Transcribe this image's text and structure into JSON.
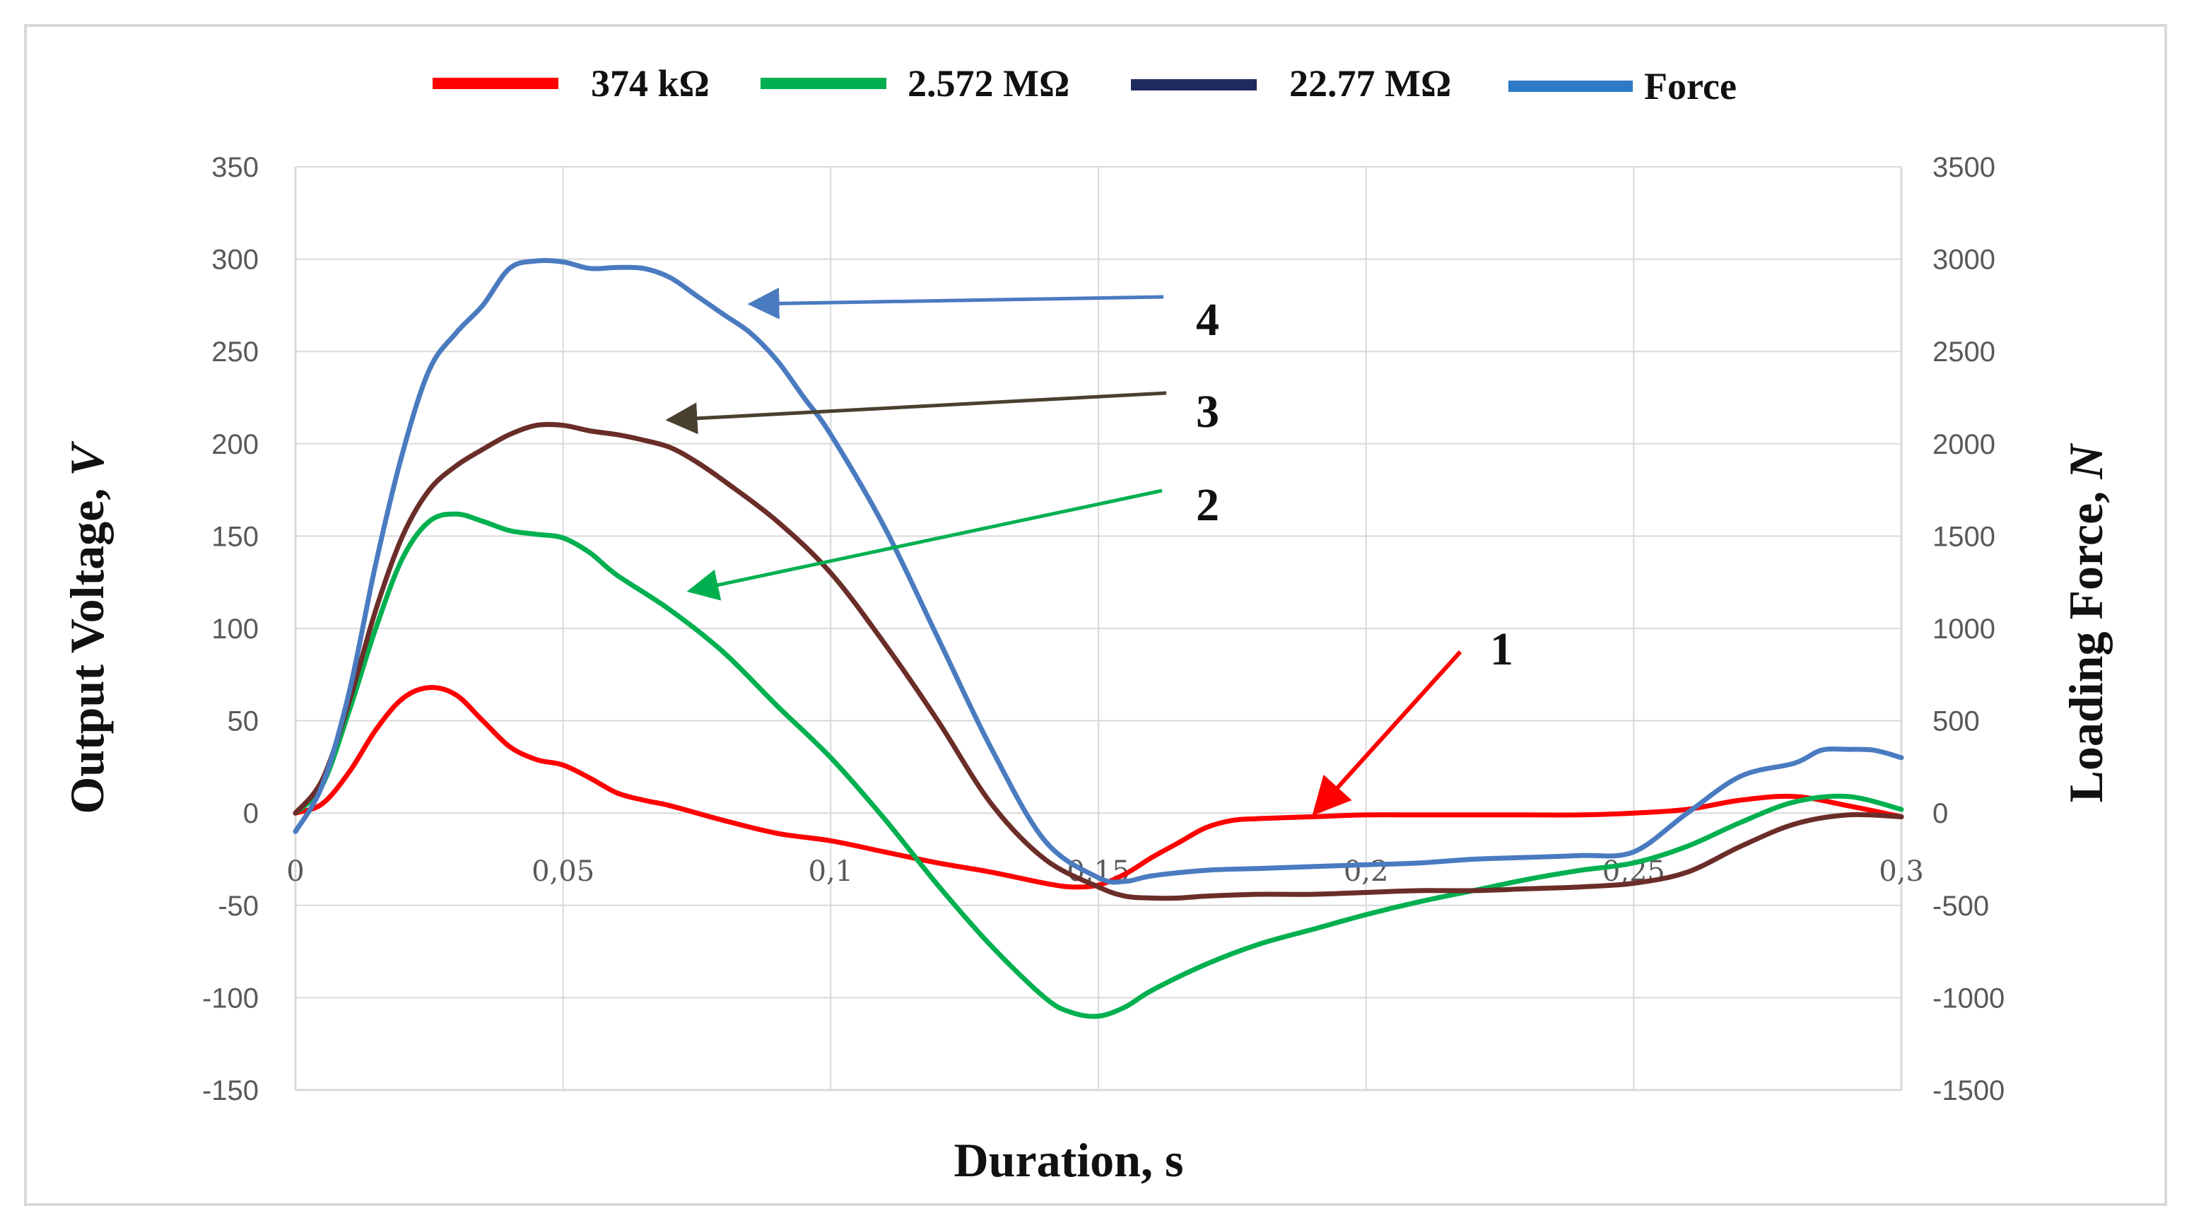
{
  "chart_data": {
    "type": "line",
    "xlabel": "Duration, s",
    "ylabel_left": "Output Voltage, V",
    "ylabel_left_italic_unit": "V",
    "ylabel_right": "Loading Force, N",
    "ylabel_right_italic_unit": "N",
    "xlim": [
      0,
      0.3
    ],
    "ylim_left": [
      -150,
      350
    ],
    "ylim_right": [
      -1500,
      3500
    ],
    "x_ticks": [
      0,
      0.05,
      0.1,
      0.15,
      0.2,
      0.25,
      0.3
    ],
    "x_tick_labels": [
      "0",
      "0,05",
      "0,1",
      "0,15",
      "0,2",
      "0,25",
      "0,3"
    ],
    "y_left_ticks": [
      -150,
      -100,
      -50,
      0,
      50,
      100,
      150,
      200,
      250,
      300,
      350
    ],
    "y_left_tick_labels": [
      "-150",
      "-100",
      "-50",
      "0",
      "50",
      "100",
      "150",
      "200",
      "250",
      "300",
      "350"
    ],
    "y_right_ticks": [
      -1500,
      -1000,
      -500,
      0,
      500,
      1000,
      1500,
      2000,
      2500,
      3000,
      3500
    ],
    "y_right_tick_labels": [
      "-1500",
      "-1000",
      "-500",
      "0",
      "500",
      "1000",
      "1500",
      "2000",
      "2500",
      "3000",
      "3500"
    ],
    "grid": "vertical-and-horizontal",
    "legend_position": "top",
    "legend": [
      {
        "label": "374 kΩ",
        "color": "#ff0000"
      },
      {
        "label": "2.572 MΩ",
        "color": "#00b050"
      },
      {
        "label": "22.77 MΩ",
        "color": "#1f2a5e"
      },
      {
        "label": "Force",
        "color": "#2f7ac6"
      }
    ],
    "series": [
      {
        "name": "374 kΩ",
        "axis": "left",
        "color": "#ff0000",
        "x": [
          0,
          0.005,
          0.01,
          0.015,
          0.02,
          0.025,
          0.03,
          0.035,
          0.04,
          0.045,
          0.05,
          0.055,
          0.06,
          0.065,
          0.07,
          0.08,
          0.09,
          0.1,
          0.11,
          0.12,
          0.13,
          0.14,
          0.145,
          0.15,
          0.155,
          0.16,
          0.165,
          0.17,
          0.175,
          0.18,
          0.19,
          0.2,
          0.21,
          0.22,
          0.23,
          0.24,
          0.25,
          0.26,
          0.27,
          0.28,
          0.29,
          0.3
        ],
        "y": [
          0,
          5,
          22,
          45,
          62,
          68,
          64,
          50,
          36,
          29,
          26,
          19,
          11,
          7,
          4,
          -4,
          -11,
          -15,
          -21,
          -27,
          -32,
          -38,
          -40,
          -39,
          -33,
          -24,
          -16,
          -8,
          -4,
          -3,
          -2,
          -1,
          -1,
          -1,
          -1,
          -1,
          0,
          2,
          7,
          9,
          4,
          -2
        ]
      },
      {
        "name": "2.572 MΩ",
        "axis": "left",
        "color": "#00b050",
        "x": [
          0,
          0.005,
          0.01,
          0.015,
          0.02,
          0.025,
          0.03,
          0.035,
          0.04,
          0.045,
          0.05,
          0.055,
          0.06,
          0.07,
          0.08,
          0.09,
          0.1,
          0.11,
          0.12,
          0.13,
          0.14,
          0.145,
          0.15,
          0.155,
          0.16,
          0.17,
          0.18,
          0.19,
          0.2,
          0.21,
          0.22,
          0.23,
          0.24,
          0.25,
          0.26,
          0.27,
          0.28,
          0.29,
          0.3
        ],
        "y": [
          0,
          15,
          55,
          100,
          138,
          158,
          162,
          158,
          153,
          151,
          149,
          141,
          129,
          110,
          87,
          58,
          30,
          -3,
          -39,
          -72,
          -100,
          -108,
          -110,
          -105,
          -96,
          -82,
          -71,
          -63,
          -55,
          -48,
          -42,
          -36,
          -31,
          -27,
          -18,
          -5,
          6,
          9,
          2
        ]
      },
      {
        "name": "22.77 MΩ",
        "axis": "left",
        "color": "#6b2d28",
        "x": [
          0,
          0.005,
          0.01,
          0.015,
          0.02,
          0.025,
          0.03,
          0.035,
          0.04,
          0.045,
          0.05,
          0.055,
          0.06,
          0.065,
          0.07,
          0.075,
          0.08,
          0.09,
          0.1,
          0.11,
          0.12,
          0.13,
          0.14,
          0.15,
          0.155,
          0.16,
          0.165,
          0.17,
          0.18,
          0.19,
          0.2,
          0.21,
          0.22,
          0.23,
          0.24,
          0.25,
          0.26,
          0.27,
          0.28,
          0.29,
          0.3
        ],
        "y": [
          0,
          18,
          60,
          110,
          150,
          175,
          188,
          197,
          205,
          210,
          210,
          207,
          205,
          202,
          198,
          190,
          180,
          158,
          130,
          92,
          50,
          5,
          -25,
          -40,
          -45,
          -46,
          -46,
          -45,
          -44,
          -44,
          -43,
          -42,
          -42,
          -41,
          -40,
          -38,
          -32,
          -18,
          -6,
          -1,
          -2
        ]
      },
      {
        "name": "Force",
        "axis": "right",
        "color": "#4a7bc0",
        "x": [
          0,
          0.005,
          0.01,
          0.015,
          0.02,
          0.025,
          0.03,
          0.035,
          0.04,
          0.045,
          0.05,
          0.055,
          0.06,
          0.065,
          0.07,
          0.075,
          0.08,
          0.085,
          0.09,
          0.095,
          0.1,
          0.11,
          0.12,
          0.13,
          0.14,
          0.15,
          0.155,
          0.16,
          0.17,
          0.18,
          0.19,
          0.2,
          0.21,
          0.22,
          0.23,
          0.24,
          0.25,
          0.26,
          0.27,
          0.28,
          0.285,
          0.29,
          0.295,
          0.3
        ],
        "y": [
          -100,
          150,
          650,
          1350,
          1950,
          2400,
          2600,
          2750,
          2950,
          2990,
          2985,
          2950,
          2955,
          2950,
          2900,
          2800,
          2700,
          2600,
          2450,
          2250,
          2050,
          1550,
          950,
          350,
          -150,
          -350,
          -370,
          -340,
          -310,
          -300,
          -290,
          -280,
          -270,
          -250,
          -240,
          -230,
          -210,
          0,
          200,
          270,
          340,
          345,
          340,
          300
        ]
      }
    ],
    "annotations": [
      {
        "label": "1",
        "series": "374 kΩ",
        "color": "#ff0000"
      },
      {
        "label": "2",
        "series": "2.572 MΩ",
        "color": "#00b050"
      },
      {
        "label": "3",
        "series": "22.77 MΩ",
        "color": "#4a4030"
      },
      {
        "label": "4",
        "series": "Force",
        "color": "#4a7bc0"
      }
    ]
  }
}
